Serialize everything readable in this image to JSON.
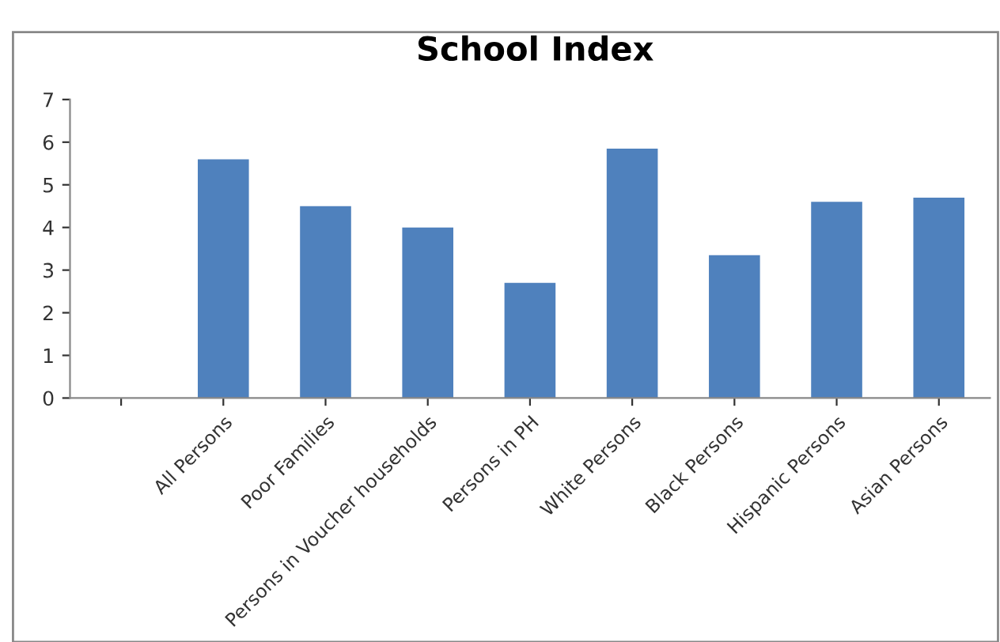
{
  "chart_data": {
    "type": "bar",
    "title": "School Index",
    "categories": [
      null,
      "All Persons",
      "Poor Families",
      "Persons in Voucher households",
      "Persons in PH",
      "White Persons",
      "Black Persons",
      "Hispanic Persons",
      "Asian Persons"
    ],
    "values": [
      null,
      5.6,
      4.5,
      4.0,
      2.7,
      5.85,
      3.35,
      4.6,
      4.7
    ],
    "color": "#4f81bd",
    "ylim": [
      0,
      7
    ],
    "yticks": [
      0,
      1,
      2,
      3,
      4,
      5,
      6,
      7
    ],
    "grid": false,
    "legend": false
  }
}
